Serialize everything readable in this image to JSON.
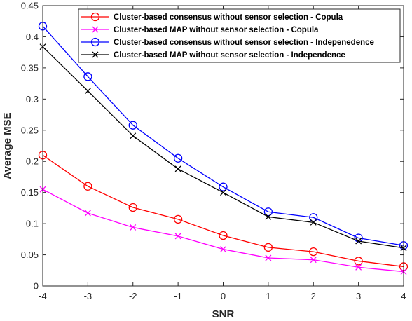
{
  "chart_data": {
    "type": "line",
    "title": "",
    "xlabel": "SNR",
    "ylabel": "Average MSE",
    "x": [
      -4,
      -3,
      -2,
      -1,
      0,
      1,
      2,
      3,
      4
    ],
    "xlim": [
      -4,
      4
    ],
    "ylim": [
      0,
      0.45
    ],
    "x_ticks": [
      "-4",
      "-3",
      "-2",
      "-1",
      "0",
      "1",
      "2",
      "3",
      "4"
    ],
    "y_ticks": [
      "0",
      "0.05",
      "0.1",
      "0.15",
      "0.2",
      "0.25",
      "0.3",
      "0.35",
      "0.4",
      "0.45"
    ],
    "grid": false,
    "legend_position": "top-right",
    "series": [
      {
        "name": "Cluster-based consensus without sensor selection - Copula",
        "color": "#ff0000",
        "marker": "circle",
        "values": [
          0.21,
          0.16,
          0.126,
          0.107,
          0.081,
          0.062,
          0.055,
          0.04,
          0.031
        ]
      },
      {
        "name": "Cluster-based MAP without sensor selection - Copula",
        "color": "#ff00ff",
        "marker": "x",
        "values": [
          0.155,
          0.117,
          0.094,
          0.08,
          0.059,
          0.045,
          0.042,
          0.03,
          0.023
        ]
      },
      {
        "name": "Cluster-based consensus without sensor selection - Indepenedence",
        "color": "#0000ff",
        "marker": "circle",
        "values": [
          0.417,
          0.336,
          0.258,
          0.205,
          0.159,
          0.119,
          0.11,
          0.077,
          0.065
        ]
      },
      {
        "name": "Cluster-based MAP without sensor selection - Independence",
        "color": "#000000",
        "marker": "x",
        "values": [
          0.384,
          0.313,
          0.241,
          0.188,
          0.15,
          0.111,
          0.102,
          0.072,
          0.061
        ]
      }
    ]
  }
}
